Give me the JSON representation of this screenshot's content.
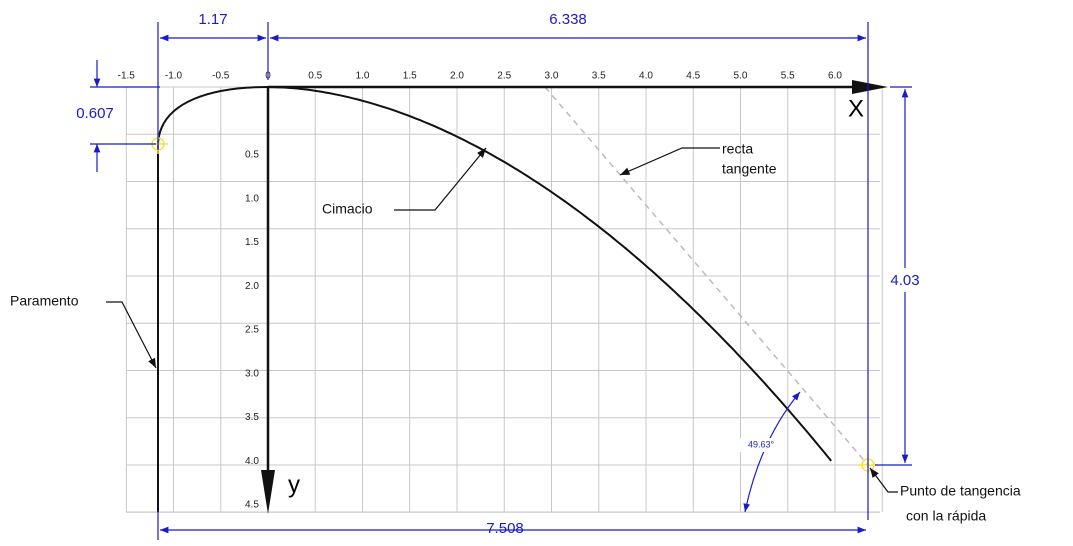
{
  "x_axis": {
    "name": "x",
    "labels": [
      "-1.5",
      "-1.0",
      "-0.5",
      "0",
      "0.5",
      "1.0",
      "1.5",
      "2.0",
      "2.5",
      "3.0",
      "3.5",
      "4.0",
      "4.5",
      "5.0",
      "5.5",
      "6.0"
    ]
  },
  "y_axis": {
    "name": "y",
    "labels": [
      "0.5",
      "1.0",
      "1.5",
      "2.0",
      "2.5",
      "3.0",
      "3.5",
      "4.0",
      "4.5"
    ]
  },
  "dimensions": {
    "upstream_width": "1.17",
    "downstream_width": "6.338",
    "total_width": "7.508",
    "upstream_depth": "0.607",
    "total_depth": "4.03",
    "angle": "49.63°"
  },
  "annotations": {
    "paramento": "Paramento",
    "cimacio": "Cimacio",
    "tangent": [
      "recta",
      "tangente"
    ],
    "tangency_point": [
      "Punto de tangencia",
      "con la rápida"
    ]
  }
}
